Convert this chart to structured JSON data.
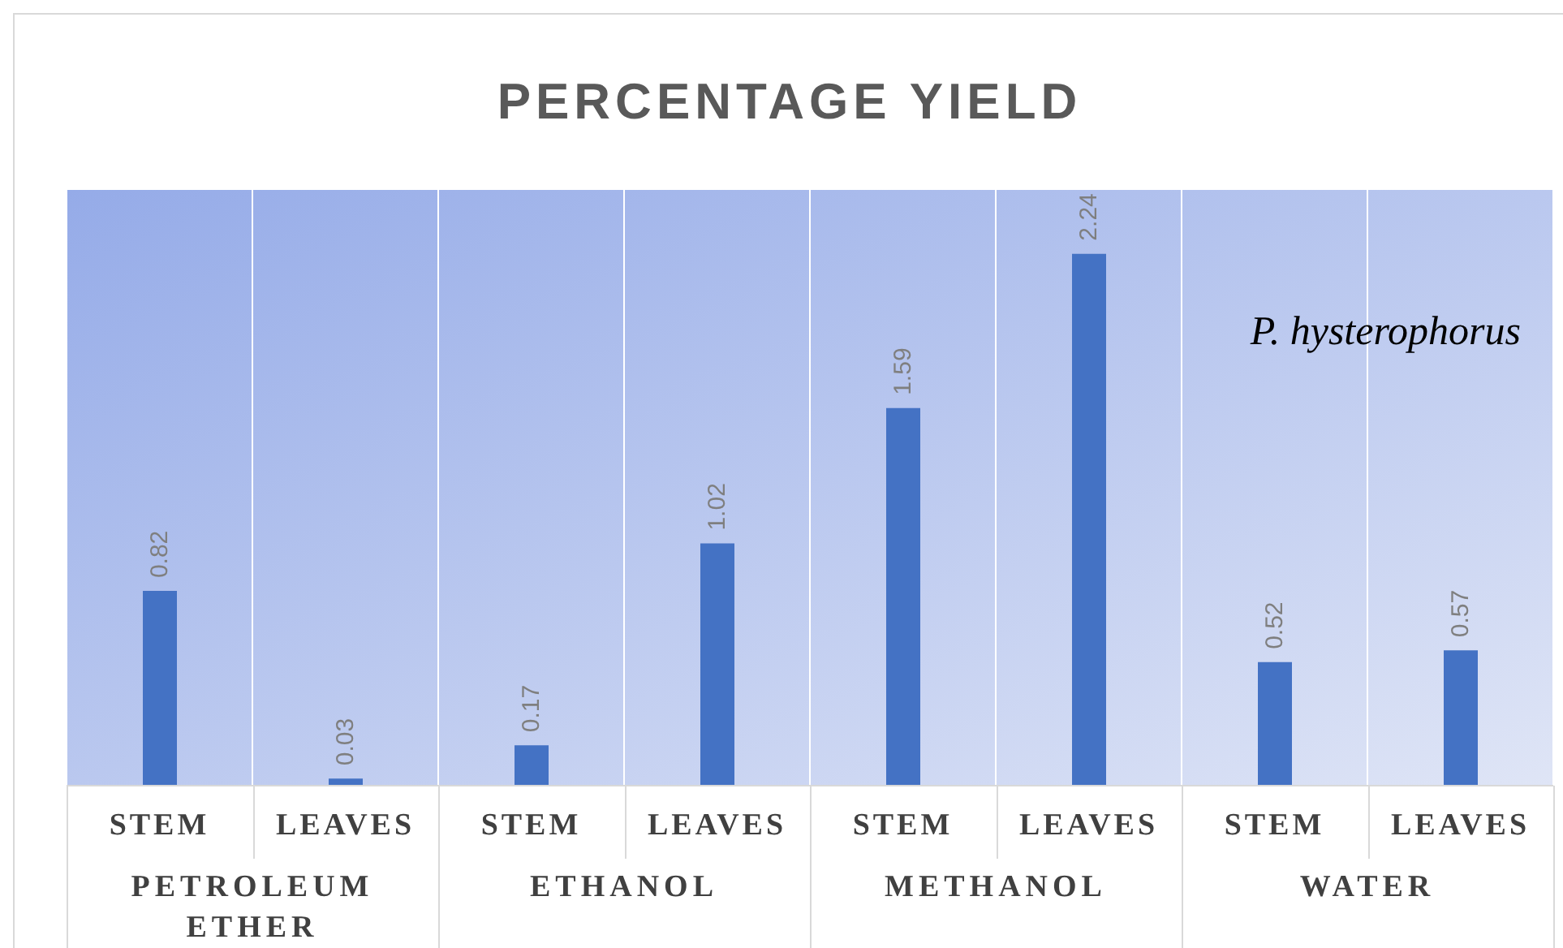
{
  "chart_data": {
    "type": "bar",
    "title": "PERCENTAGE YIELD",
    "categories": [
      "STEM",
      "LEAVES",
      "STEM",
      "LEAVES",
      "STEM",
      "LEAVES",
      "STEM",
      "LEAVES"
    ],
    "values": [
      0.82,
      0.03,
      0.17,
      1.02,
      1.59,
      2.24,
      0.52,
      0.57
    ],
    "color": "#4472c4",
    "data_labels": true,
    "grid": true,
    "annotations": [
      "P. hysterophorus",
      "PETROLEUM ETHER",
      "ETHANOL",
      "METHANOL",
      "WATER"
    ]
  }
}
